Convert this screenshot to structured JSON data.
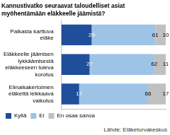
{
  "chart_data": {
    "type": "bar",
    "title": "Kannustivatko seuraavat taloudelliset asiat myöhentämään eläkkeelle jäämistä?",
    "categories": [
      "Palkasta karttuva eläke",
      "Eläkkeelle jäämisen lykkäämisestä eläkkeeseen tuleva korotus",
      "Elinaikakertoimen eläkettä leikkaava vaikutus"
    ],
    "series": [
      {
        "name": "Kyllä",
        "color": "#1f4e9a",
        "values": [
          29,
          27,
          17
        ]
      },
      {
        "name": "Ei",
        "color": "#9dc3e6",
        "values": [
          61,
          62,
          66
        ]
      },
      {
        "name": "En osaa sanoa",
        "color": "#c0c0c0",
        "values": [
          10,
          11,
          17
        ]
      }
    ],
    "xlim": [
      0,
      100
    ],
    "orientation": "horizontal",
    "stacked": true,
    "data_labels": true,
    "tick_labels": "y",
    "grid": false,
    "legend": "bottom",
    "annotations": [
      "Lähde: Eläketurvakeskus"
    ]
  }
}
